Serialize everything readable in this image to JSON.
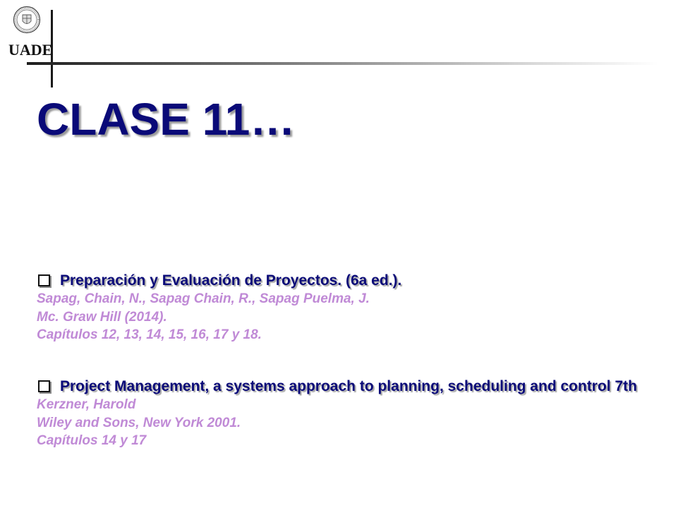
{
  "logo": {
    "text": "UADE"
  },
  "slide": {
    "title": "CLASE 11…"
  },
  "references": [
    {
      "title": "Preparación y Evaluación de Proyectos. (6a ed.).",
      "lines": [
        "Sapag, Chain, N., Sapag Chain, R., Sapag Puelma, J.",
        "Mc. Graw Hill (2014).",
        "Capítulos 12, 13, 14, 15, 16, 17 y 18."
      ]
    },
    {
      "title": "Project Management, a systems approach to planning, scheduling and control 7th",
      "lines": [
        "Kerzner, Harold",
        "Wiley and Sons, New York 2001.",
        "Capítulos 14 y 17"
      ]
    }
  ],
  "colors": {
    "title": "#0a0a78",
    "reference_title": "#0a0a78",
    "reference_detail": "#c08ad6"
  }
}
